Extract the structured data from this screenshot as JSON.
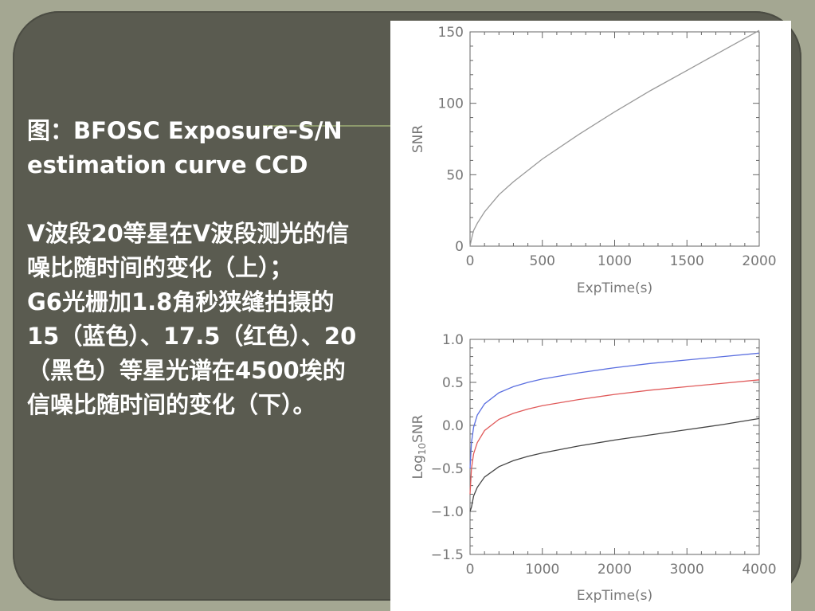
{
  "caption": {
    "text": "图：BFOSC Exposure-S/N estimation curve CCD\n\nV波段20等星在V波段测光的信噪比随时间的变化（上）；\nG6光栅加1.8角秒狭缝拍摄的15（蓝色）、17.5（红色）、20（黑色）等星光谱在4500埃的信噪比随时间的变化（下）。"
  },
  "colors": {
    "background": "#a4a792",
    "frame": "#5a5b50",
    "panel": "#ffffff",
    "axis": "#666666",
    "series_gray": "#999999",
    "series_blue": "#5b6fe0",
    "series_red": "#e05a5a",
    "series_black": "#444444"
  },
  "chart_data": [
    {
      "type": "line",
      "title": "",
      "xlabel": "ExpTime(s)",
      "ylabel": "SNR",
      "xlim": [
        0,
        2000
      ],
      "ylim": [
        0,
        150
      ],
      "xticks": [
        "0",
        "500",
        "1000",
        "1500",
        "2000"
      ],
      "yticks": [
        "0",
        "50",
        "100",
        "150"
      ],
      "series": [
        {
          "color": "#999999",
          "x": [
            0,
            10,
            25,
            50,
            100,
            200,
            300,
            500,
            750,
            1000,
            1250,
            1500,
            1750,
            2000
          ],
          "values": [
            0,
            5,
            11,
            16,
            24,
            36,
            45,
            61,
            78,
            94,
            109,
            123,
            137,
            151
          ]
        }
      ]
    },
    {
      "type": "line",
      "title": "",
      "xlabel": "ExpTime(s)",
      "ylabel": "Log10SNR",
      "xlim": [
        0,
        4000
      ],
      "ylim": [
        -1.5,
        1.0
      ],
      "xticks": [
        "0",
        "1000",
        "2000",
        "3000",
        "4000"
      ],
      "yticks": [
        "1.0",
        "0.5",
        "0.0",
        "−0.5",
        "−1.0",
        "−1.5"
      ],
      "series": [
        {
          "color": "#5b6fe0",
          "x": [
            0,
            20,
            50,
            100,
            200,
            400,
            600,
            800,
            1000,
            1500,
            2000,
            2500,
            3000,
            3500,
            4000
          ],
          "values": [
            -0.5,
            -0.2,
            -0.02,
            0.12,
            0.25,
            0.38,
            0.45,
            0.5,
            0.54,
            0.61,
            0.67,
            0.72,
            0.76,
            0.8,
            0.84
          ]
        },
        {
          "color": "#e05a5a",
          "x": [
            0,
            20,
            50,
            100,
            200,
            400,
            600,
            800,
            1000,
            1500,
            2000,
            2500,
            3000,
            3500,
            4000
          ],
          "values": [
            -0.8,
            -0.5,
            -0.33,
            -0.2,
            -0.06,
            0.07,
            0.14,
            0.19,
            0.23,
            0.3,
            0.36,
            0.41,
            0.45,
            0.49,
            0.53
          ]
        },
        {
          "color": "#444444",
          "x": [
            0,
            20,
            50,
            100,
            200,
            400,
            600,
            800,
            1000,
            1500,
            2000,
            2500,
            3000,
            3500,
            4000
          ],
          "values": [
            -1.0,
            -0.95,
            -0.82,
            -0.72,
            -0.6,
            -0.48,
            -0.41,
            -0.36,
            -0.32,
            -0.24,
            -0.17,
            -0.11,
            -0.05,
            0.01,
            0.08
          ]
        }
      ]
    }
  ]
}
